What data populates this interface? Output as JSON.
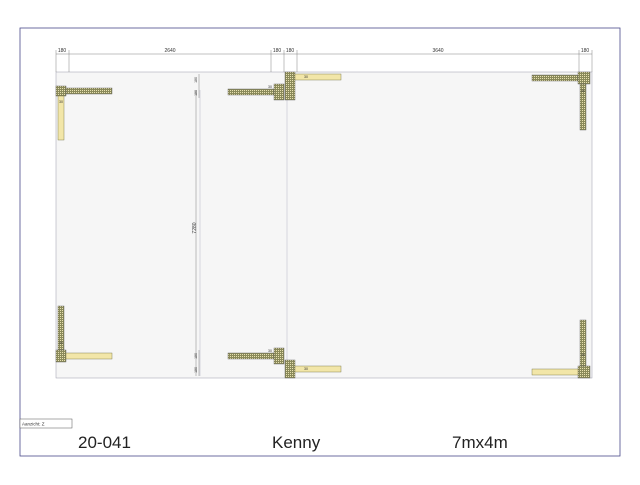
{
  "drawing": {
    "view_label": "Aanzicht: Z",
    "project_number": "20-041",
    "client_name": "Kenny",
    "size_label": "7mx4m"
  },
  "dimensions": {
    "top": [
      "180",
      "2640",
      "180",
      "180",
      "3640",
      "180"
    ],
    "left_vertical": "7280",
    "stack_top": [
      "180",
      "180"
    ],
    "stack_bottom": [
      "180",
      "180"
    ]
  },
  "posts": {
    "label_value": "30"
  },
  "colors": {
    "outline": "#4a4a6a",
    "beam_fill": "#f2e6a8",
    "beam_stroke": "#6d6a3a",
    "post_fill": "#d8cf7e",
    "grid_line": "#b8b8c8",
    "panel_fill": "#f6f6f6"
  }
}
